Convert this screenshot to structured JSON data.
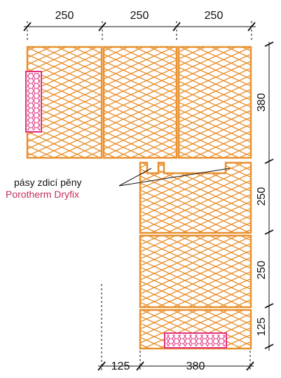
{
  "dimensions": {
    "top": [
      "250",
      "250",
      "250"
    ],
    "right": [
      "380",
      "250",
      "250",
      "125"
    ],
    "bottom": [
      "125",
      "380"
    ]
  },
  "annotation": {
    "line1": "pásy zdicí pěny",
    "line2": "Porotherm Dryfix"
  },
  "colors": {
    "brick": "#e8902e",
    "insulation": "#e0307f",
    "product_text": "#c0305a",
    "ink": "#111111"
  }
}
